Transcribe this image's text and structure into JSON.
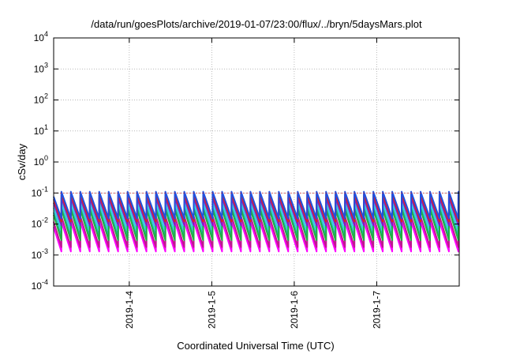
{
  "chart_data": {
    "type": "line",
    "title": "/data/run/goesPlots/archive/2019-01-07/23:00/flux/../bryn/5daysMars.plot",
    "xlabel": "Coordinated Universal Time (UTC)",
    "ylabel": "cSv/day",
    "yscale": "log",
    "ylim": [
      0.0001,
      10000
    ],
    "xlim": [
      "2019-01-03 02:00",
      "2019-01-08 00:00"
    ],
    "x_ticks": [
      "2019-1-4",
      "2019-1-5",
      "2019-1-6",
      "2019-1-7"
    ],
    "y_ticks": [
      {
        "base": "10",
        "exp": "-4"
      },
      {
        "base": "10",
        "exp": "-3"
      },
      {
        "base": "10",
        "exp": "-2"
      },
      {
        "base": "10",
        "exp": "-1"
      },
      {
        "base": "10",
        "exp": "0"
      },
      {
        "base": "10",
        "exp": "1"
      },
      {
        "base": "10",
        "exp": "2"
      },
      {
        "base": "10",
        "exp": "3"
      },
      {
        "base": "10",
        "exp": "4"
      }
    ],
    "threshold_value": 0.1,
    "threshold_color": "#d03030",
    "grid": true,
    "legend": "none",
    "cycle_hours": 2.75,
    "series": [
      {
        "color": "#ff00ff",
        "peak": 0.012,
        "trough": 0.0013
      },
      {
        "color": "#c01890",
        "peak": 0.018,
        "trough": 0.0018
      },
      {
        "color": "#20b0b0",
        "peak": 0.035,
        "trough": 0.004
      },
      {
        "color": "#30d0e0",
        "peak": 0.05,
        "trough": 0.006
      },
      {
        "color": "#20b040",
        "peak": 0.03,
        "trough": 0.003
      },
      {
        "color": "#8020c0",
        "peak": 0.07,
        "trough": 0.009
      },
      {
        "color": "#e02020",
        "peak": 0.09,
        "trough": 0.012
      },
      {
        "color": "#2050e0",
        "peak": 0.11,
        "trough": 0.015
      }
    ]
  }
}
